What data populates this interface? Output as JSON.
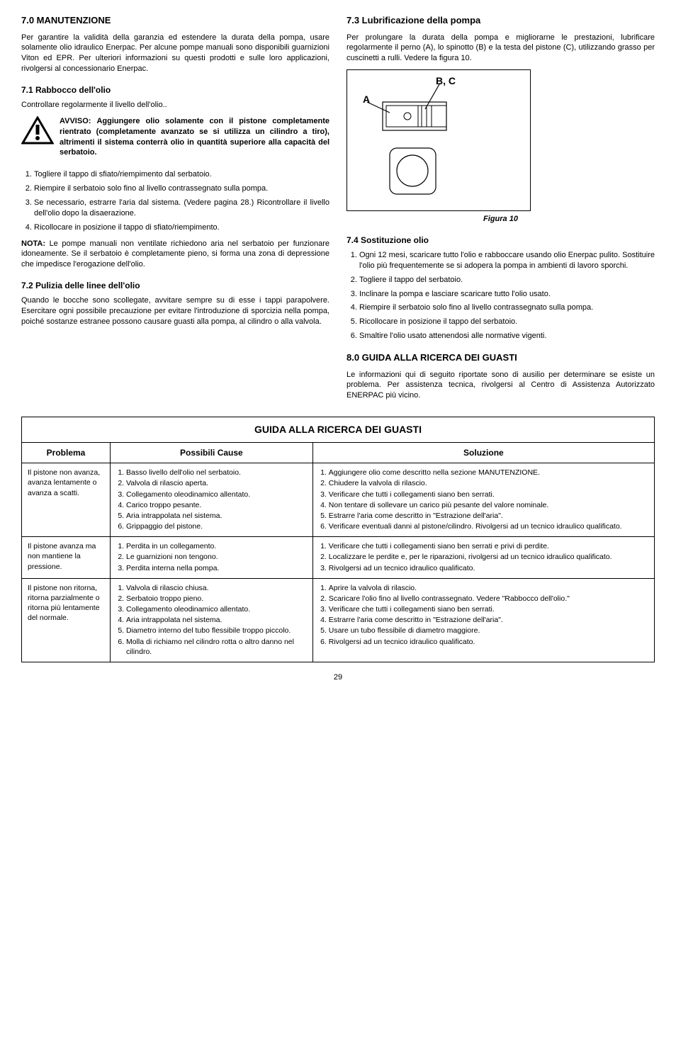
{
  "left": {
    "h70": "7.0  MANUTENZIONE",
    "p70": "Per garantire la validità della garanzia ed estendere la durata della pompa, usare solamente olio idraulico Enerpac. Per alcune pompe manuali sono disponibili guarnizioni Viton ed EPR. Per ulteriori informazioni su questi prodotti e sulle loro applicazioni, rivolgersi al concessionario Enerpac.",
    "h71": "7.1  Rabbocco dell'olio",
    "p71": "Controllare regolarmente il livello dell'olio..",
    "warn_label": "AVVISO:",
    "warn_body": "Aggiungere olio solamente con il pistone completamente rientrato (completamente avanzato se si utilizza un cilindro a tiro), altrimenti il sistema conterrà olio in quantità superiore alla capacità del serbatoio.",
    "list71": [
      "Togliere il tappo di sfiato/riempimento dal serbatoio.",
      "Riempire il serbatoio solo fino al livello contrassegnato sulla pompa.",
      "Se necessario, estrarre l'aria dal sistema. (Vedere pagina 28.) Ricontrollare il livello dell'olio dopo la disaerazione.",
      "Ricollocare in posizione il tappo di sfiato/riempimento."
    ],
    "nota_label": "NOTA:",
    "nota_body": "Le pompe manuali non ventilate richiedono aria nel serbatoio per funzionare idoneamente. Se il serbatoio è completamente pieno, si forma una zona di depressione che impedisce l'erogazione dell'olio.",
    "h72": "7.2  Pulizia delle linee dell'olio",
    "p72": "Quando le bocche sono scollegate, avvitare sempre su di esse i tappi parapolvere. Esercitare ogni possibile precauzione per evitare l'introduzione di sporcizia nella pompa, poiché sostanze estranee possono causare guasti alla pompa, al cilindro o alla valvola."
  },
  "right": {
    "h73": "7.3  Lubrificazione della pompa",
    "p73": "Per prolungare la durata della pompa e migliorarne le prestazioni, lubrificare regolarmente il perno (A), lo spinotto (B) e la testa del pistone (C), utilizzando grasso per cuscinetti a rulli. Vedere la figura 10.",
    "fig_bc": "B, C",
    "fig_a": "A",
    "fig_caption": "Figura 10",
    "h74": "7.4  Sostituzione olio",
    "list74": [
      "Ogni 12 mesi, scaricare tutto l'olio e rabboccare usando olio Enerpac pulito. Sostituire l'olio più frequentemente se si adopera la pompa in ambienti di lavoro sporchi.",
      "Togliere il tappo del serbatoio.",
      "Inclinare la pompa e lasciare scaricare tutto l'olio usato.",
      "Riempire il serbatoio solo fino al livello contrassegnato sulla pompa.",
      "Ricollocare in posizione il tappo del serbatoio.",
      "Smaltire l'olio usato attenendosi alle normative vigenti."
    ],
    "h80": "8.0  GUIDA ALLA RICERCA DEI GUASTI",
    "p80": "Le informazioni qui di seguito riportate sono di ausilio per determinare se esiste un problema. Per assistenza tecnica, rivolgersi al Centro di Assistenza Autorizzato ENERPAC più vicino."
  },
  "table": {
    "caption": "GUIDA ALLA RICERCA DEI GUASTI",
    "headers": {
      "problema": "Problema",
      "cause": "Possibili Cause",
      "soluzione": "Soluzione"
    },
    "rows": [
      {
        "problema": "Il pistone non avanza, avanza lentamente o avanza a scatti.",
        "cause": [
          "Basso livello dell'olio nel serbatoio.",
          "Valvola di rilascio aperta.",
          "Collegamento oleodinamico allentato.",
          "Carico troppo pesante.",
          "Aria intrappolata nel sistema.",
          "Grippaggio del pistone."
        ],
        "soluzione": [
          "Aggiungere olio come descritto nella sezione MANUTENZIONE.",
          "Chiudere la valvola di rilascio.",
          "Verificare che tutti i collegamenti siano ben serrati.",
          "Non tentare di sollevare un carico più pesante del valore nominale.",
          "Estrarre l'aria come descritto in \"Estrazione dell'aria\".",
          "Verificare eventuali danni al pistone/cilindro. Rivolgersi ad un tecnico idraulico qualificato."
        ]
      },
      {
        "problema": "Il pistone avanza ma non mantiene la pressione.",
        "cause": [
          "Perdita in un collegamento.",
          "Le guarnizioni non tengono.",
          "Perdita interna nella pompa."
        ],
        "soluzione": [
          "Verificare che tutti i collegamenti siano ben serrati e privi di perdite.",
          "Localizzare le perdite e, per le riparazioni, rivolgersi ad un tecnico idraulico qualificato.",
          "Rivolgersi ad un tecnico idraulico qualificato."
        ]
      },
      {
        "problema": "Il pistone non ritorna, ritorna parzialmente o ritorna più lentamente del normale.",
        "cause": [
          "Valvola di rilascio chiusa.",
          "Serbatoio troppo pieno.",
          "Collegamento oleodinamico allentato.",
          "Aria intrappolata nel sistema.",
          "Diametro interno del tubo flessibile troppo piccolo.",
          "Molla di richiamo nel cilindro rotta o altro danno nel cilindro."
        ],
        "soluzione": [
          "Aprire la valvola di rilascio.",
          "Scaricare l'olio fino al livello contrassegnato. Vedere \"Rabbocco dell'olio.\"",
          "Verificare che tutti i collegamenti siano ben serrati.",
          "Estrarre l'aria come descritto in \"Estrazione dell'aria\".",
          "Usare un tubo flessibile di diametro maggiore.",
          "Rivolgersi ad un tecnico idraulico qualificato."
        ]
      }
    ]
  },
  "page_num": "29"
}
